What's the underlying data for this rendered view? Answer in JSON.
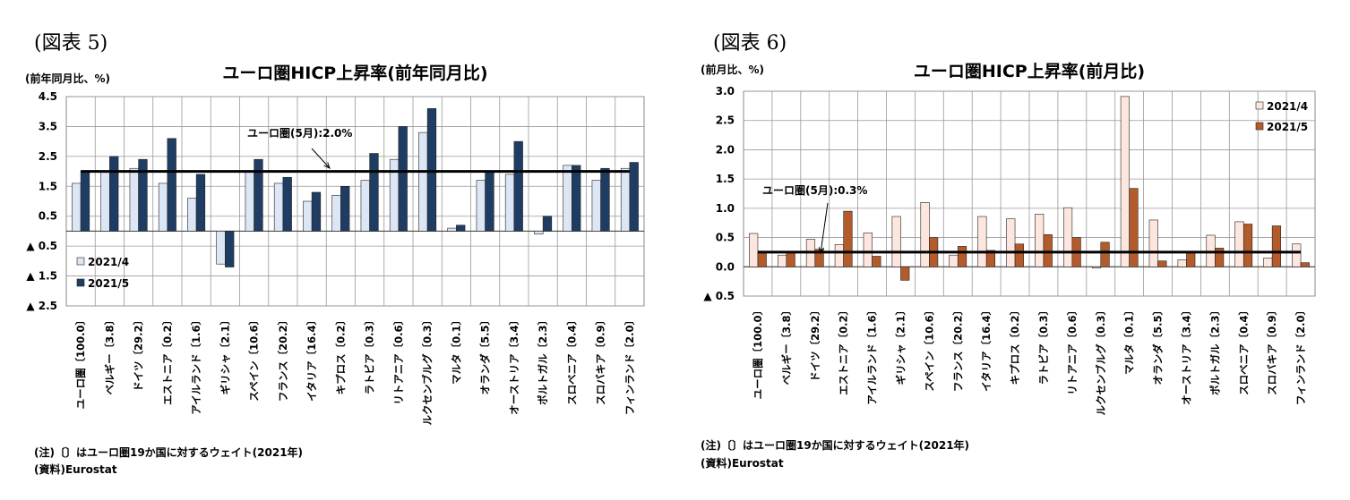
{
  "left": {
    "fig_label": "(図表 5)",
    "note": "(注)〔〕はユーロ圏19か国に対するウェイト(2021年)",
    "source": "(資料)Eurostat"
  },
  "right": {
    "fig_label": "(図表 6)",
    "note": "(注)〔〕はユーロ圏19か国に対するウェイト(2021年)",
    "source": "(資料)Eurostat"
  },
  "colors": {
    "series1": "#dde6f4",
    "series2": "#1f3d63",
    "series3": "#fde6de",
    "series4": "#b45b2c",
    "grid": "#999999",
    "ref": "#000000"
  },
  "chart_data": [
    {
      "type": "bar",
      "title": "ユーロ圏HICP上昇率(前年同月比)",
      "ylabel": "(前年同月比、%)",
      "ylim": [
        -2.5,
        4.5
      ],
      "ytick_values": [
        4.5,
        3.5,
        2.5,
        1.5,
        0.5,
        -0.5,
        -1.5,
        -2.5
      ],
      "ytick_labels": [
        "4.5",
        "3.5",
        "2.5",
        "1.5",
        "0.5",
        "▲ 0.5",
        "▲ 1.5",
        "▲ 2.5"
      ],
      "categories": [
        "ユーロ圏〔100.0〕",
        "ベルギー〔3.8〕",
        "ドイツ〔29.2〕",
        "エストニア〔0.2〕",
        "アイルランド〔1.6〕",
        "ギリシャ〔2.1〕",
        "スペイン〔10.6〕",
        "フランス〔20.2〕",
        "イタリア〔16.4〕",
        "キプロス〔0.2〕",
        "ラトビア〔0.3〕",
        "リトアニア〔0.6〕",
        "ルクセンブルグ〔0.3〕",
        "マルタ〔0.1〕",
        "オランダ〔5.5〕",
        "オーストリア〔3.4〕",
        "ポルトガル〔2.3〕",
        "スロベニア〔0.4〕",
        "スロバキア〔0.9〕",
        "フィンランド〔2.0〕"
      ],
      "series": [
        {
          "name": "2021/4",
          "values": [
            1.6,
            2.0,
            2.1,
            1.6,
            1.1,
            -1.1,
            2.0,
            1.6,
            1.0,
            1.2,
            1.7,
            2.4,
            3.3,
            0.1,
            1.7,
            1.9,
            -0.1,
            2.2,
            1.7,
            2.1
          ]
        },
        {
          "name": "2021/5",
          "values": [
            2.0,
            2.5,
            2.4,
            3.1,
            1.9,
            -1.2,
            2.4,
            1.8,
            1.3,
            1.5,
            2.6,
            3.5,
            4.1,
            0.2,
            2.0,
            3.0,
            0.5,
            2.2,
            2.1,
            2.3
          ]
        }
      ],
      "reference_line": {
        "label": "ユーロ圏(5月):2.0%",
        "value": 2.0
      },
      "legend_position": "bottom-left",
      "grid": true
    },
    {
      "type": "bar",
      "title": "ユーロ圏HICP上昇率(前月比)",
      "ylabel": "(前月比、%)",
      "ylim": [
        -0.5,
        3.0
      ],
      "ytick_values": [
        3.0,
        2.5,
        2.0,
        1.5,
        1.0,
        0.5,
        0.0,
        -0.5
      ],
      "ytick_labels": [
        "3.0",
        "2.5",
        "2.0",
        "1.5",
        "1.0",
        "0.5",
        "0.0",
        "▲ 0.5"
      ],
      "categories": [
        "ユーロ圏〔100.0〕",
        "ベルギー〔3.8〕",
        "ドイツ〔29.2〕",
        "エストニア〔0.2〕",
        "アイルランド〔1.6〕",
        "ギリシャ〔2.1〕",
        "スペイン〔10.6〕",
        "フランス〔20.2〕",
        "イタリア〔16.4〕",
        "キプロス〔0.2〕",
        "ラトビア〔0.3〕",
        "リトアニア〔0.6〕",
        "ルクセンブルグ〔0.3〕",
        "マルタ〔0.1〕",
        "オランダ〔5.5〕",
        "オーストリア〔3.4〕",
        "ポルトガル〔2.3〕",
        "スロベニア〔0.4〕",
        "スロバキア〔0.9〕",
        "フィンランド〔2.0〕"
      ],
      "series": [
        {
          "name": "2021/4",
          "values": [
            0.57,
            0.2,
            0.47,
            0.38,
            0.58,
            0.86,
            1.1,
            0.2,
            0.86,
            0.82,
            0.9,
            1.01,
            -0.02,
            2.91,
            0.8,
            0.12,
            0.54,
            0.77,
            0.15,
            0.39
          ]
        },
        {
          "name": "2021/5",
          "values": [
            0.25,
            0.25,
            0.3,
            0.95,
            0.18,
            -0.23,
            0.5,
            0.35,
            0.28,
            0.39,
            0.55,
            0.5,
            0.42,
            1.34,
            0.1,
            0.25,
            0.32,
            0.73,
            0.7,
            0.07
          ]
        }
      ],
      "reference_line": {
        "label": "ユーロ圏(5月):0.3%",
        "value": 0.25
      },
      "legend_position": "top-right",
      "grid": true
    }
  ]
}
